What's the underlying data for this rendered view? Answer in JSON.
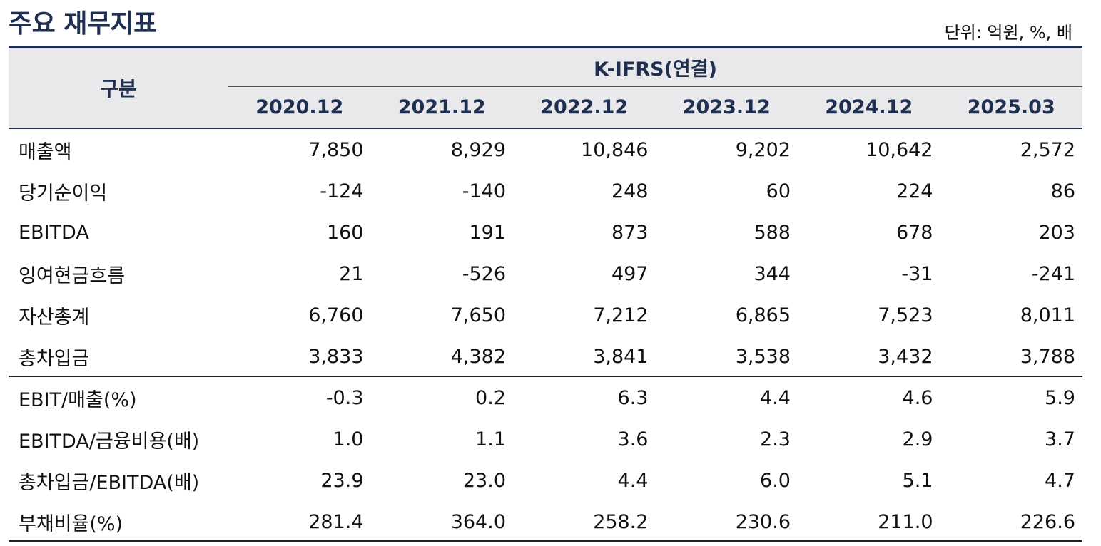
{
  "title": "주요 재무지표",
  "unit": "단위: 억원, %, 배",
  "table": {
    "corner_header": "구분",
    "group_header": "K-IFRS(연결)",
    "periods": [
      "2020.12",
      "2021.12",
      "2022.12",
      "2023.12",
      "2024.12",
      "2025.03"
    ],
    "rows": [
      {
        "label": "매출액",
        "values": [
          "7,850",
          "8,929",
          "10,846",
          "9,202",
          "10,642",
          "2,572"
        ]
      },
      {
        "label": "당기순이익",
        "values": [
          "-124",
          "-140",
          "248",
          "60",
          "224",
          "86"
        ]
      },
      {
        "label": "EBITDA",
        "values": [
          "160",
          "191",
          "873",
          "588",
          "678",
          "203"
        ]
      },
      {
        "label": "잉여현금흐름",
        "values": [
          "21",
          "-526",
          "497",
          "344",
          "-31",
          "-241"
        ]
      },
      {
        "label": "자산총계",
        "values": [
          "6,760",
          "7,650",
          "7,212",
          "6,865",
          "7,523",
          "8,011"
        ]
      },
      {
        "label": "총차입금",
        "values": [
          "3,833",
          "4,382",
          "3,841",
          "3,538",
          "3,432",
          "3,788"
        ]
      },
      {
        "label": "EBIT/매출(%)",
        "values": [
          "-0.3",
          "0.2",
          "6.3",
          "4.4",
          "4.6",
          "5.9"
        ]
      },
      {
        "label": "EBITDA/금융비용(배)",
        "values": [
          "1.0",
          "1.1",
          "3.6",
          "2.3",
          "2.9",
          "3.7"
        ]
      },
      {
        "label": "총차입금/EBITDA(배)",
        "values": [
          "23.9",
          "23.0",
          "4.4",
          "6.0",
          "5.1",
          "4.7"
        ]
      },
      {
        "label": "부채비율(%)",
        "values": [
          "281.4",
          "364.0",
          "258.2",
          "230.6",
          "211.0",
          "226.6"
        ]
      }
    ]
  }
}
